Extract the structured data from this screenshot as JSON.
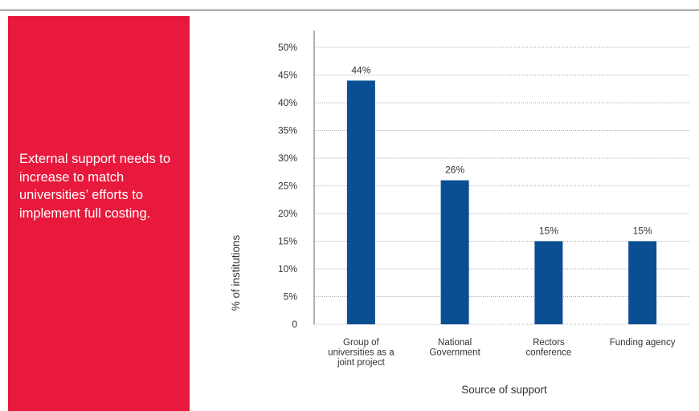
{
  "panel": {
    "text": "External support needs to increase to match universities’ efforts to implement full costing."
  },
  "chart_data": {
    "type": "bar",
    "categories": [
      [
        "Group of",
        "universities as a",
        "joint project"
      ],
      [
        "National",
        "Government"
      ],
      [
        "Rectors",
        "conference"
      ],
      [
        "Funding agency"
      ]
    ],
    "values": [
      44,
      26,
      15,
      15
    ],
    "data_labels": [
      "44%",
      "26%",
      "15%",
      "15%"
    ],
    "yticks": [
      "0",
      "5%",
      "10%",
      "15%",
      "20%",
      "25%",
      "30%",
      "35%",
      "40%",
      "45%",
      "50%"
    ],
    "ylim": [
      0,
      50
    ],
    "xlabel": "Source of support",
    "ylabel": "% of institutions",
    "bar_color": "#0a4f94",
    "grid": "dotted horizontal"
  }
}
